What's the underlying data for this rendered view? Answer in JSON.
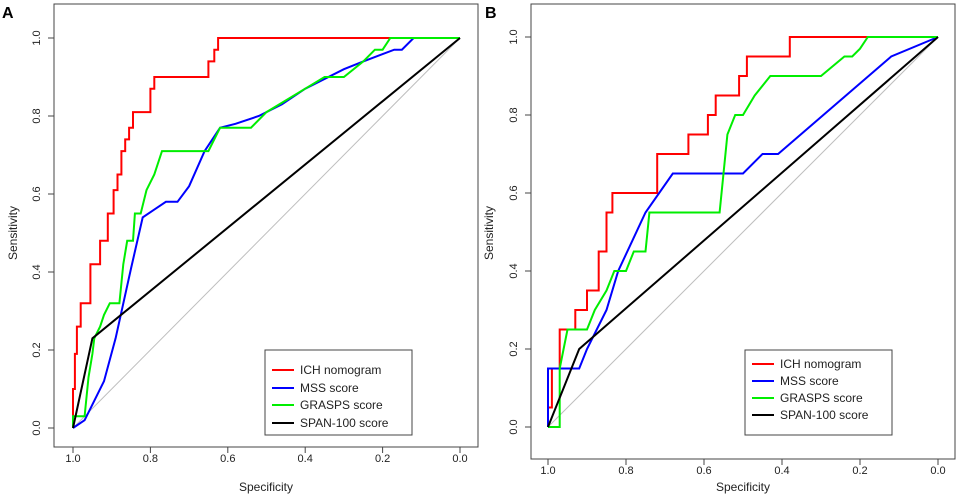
{
  "figure": {
    "series_colors": {
      "ICH nomogram": "#ff0000",
      "MSS score": "#0000ff",
      "GRASPS score": "#00ee00",
      "SPAN-100 score": "#000000"
    },
    "reference_line_color": "#bebebe"
  },
  "chart_data": [
    {
      "panel": "A",
      "type": "line",
      "xlabel": "Specificity",
      "ylabel": "Sensitivity",
      "xlim": [
        1.0,
        0.0
      ],
      "ylim": [
        0.0,
        1.0
      ],
      "xticks": [
        "1.0",
        "0.8",
        "0.6",
        "0.4",
        "0.2",
        "0.0"
      ],
      "yticks": [
        "0.0",
        "0.2",
        "0.4",
        "0.6",
        "0.8",
        "1.0"
      ],
      "legend": [
        "ICH nomogram",
        "MSS score",
        "GRASPS score",
        "SPAN-100 score"
      ],
      "legend_position": "bottom-right",
      "series": [
        {
          "name": "ICH nomogram",
          "x": [
            1.0,
            1.0,
            0.995,
            0.995,
            0.99,
            0.99,
            0.98,
            0.98,
            0.955,
            0.955,
            0.93,
            0.93,
            0.91,
            0.91,
            0.895,
            0.895,
            0.885,
            0.885,
            0.875,
            0.875,
            0.865,
            0.865,
            0.855,
            0.855,
            0.845,
            0.845,
            0.83,
            0.83,
            0.8,
            0.8,
            0.79,
            0.79,
            0.77,
            0.77,
            0.65,
            0.65,
            0.635,
            0.635,
            0.625,
            0.625,
            0.61,
            0.61,
            0.0
          ],
          "y": [
            0.0,
            0.1,
            0.1,
            0.19,
            0.19,
            0.26,
            0.26,
            0.32,
            0.32,
            0.42,
            0.42,
            0.48,
            0.48,
            0.55,
            0.55,
            0.61,
            0.61,
            0.65,
            0.65,
            0.71,
            0.71,
            0.74,
            0.74,
            0.77,
            0.77,
            0.81,
            0.81,
            0.81,
            0.81,
            0.87,
            0.87,
            0.9,
            0.9,
            0.9,
            0.9,
            0.94,
            0.94,
            0.97,
            0.97,
            1.0,
            1.0,
            1.0,
            1.0
          ]
        },
        {
          "name": "MSS score",
          "x": [
            1.0,
            0.97,
            0.95,
            0.92,
            0.89,
            0.85,
            0.82,
            0.79,
            0.76,
            0.73,
            0.7,
            0.66,
            0.62,
            0.58,
            0.52,
            0.46,
            0.4,
            0.3,
            0.25,
            0.17,
            0.15,
            0.12,
            0.0
          ],
          "y": [
            0.0,
            0.02,
            0.06,
            0.12,
            0.23,
            0.41,
            0.54,
            0.56,
            0.58,
            0.58,
            0.62,
            0.71,
            0.77,
            0.78,
            0.8,
            0.83,
            0.87,
            0.92,
            0.94,
            0.97,
            0.97,
            1.0,
            1.0
          ]
        },
        {
          "name": "GRASPS score",
          "x": [
            1.0,
            1.0,
            0.97,
            0.96,
            0.95,
            0.945,
            0.93,
            0.92,
            0.905,
            0.88,
            0.87,
            0.86,
            0.845,
            0.84,
            0.825,
            0.81,
            0.79,
            0.77,
            0.75,
            0.65,
            0.62,
            0.54,
            0.5,
            0.45,
            0.4,
            0.35,
            0.3,
            0.25,
            0.22,
            0.2,
            0.18,
            0.0
          ],
          "y": [
            0.0,
            0.03,
            0.03,
            0.13,
            0.19,
            0.23,
            0.26,
            0.29,
            0.32,
            0.32,
            0.42,
            0.48,
            0.48,
            0.55,
            0.55,
            0.61,
            0.65,
            0.71,
            0.71,
            0.71,
            0.77,
            0.77,
            0.81,
            0.84,
            0.87,
            0.9,
            0.9,
            0.94,
            0.97,
            0.97,
            1.0,
            1.0
          ]
        },
        {
          "name": "SPAN-100 score",
          "x": [
            1.0,
            0.95,
            0.0
          ],
          "y": [
            0.0,
            0.23,
            1.0
          ]
        }
      ]
    },
    {
      "panel": "B",
      "type": "line",
      "xlabel": "Specificity",
      "ylabel": "Sensitivity",
      "xlim": [
        1.0,
        0.0
      ],
      "ylim": [
        0.0,
        1.0
      ],
      "xticks": [
        "1.0",
        "0.8",
        "0.6",
        "0.4",
        "0.2",
        "0.0"
      ],
      "yticks": [
        "0.0",
        "0.2",
        "0.4",
        "0.6",
        "0.8",
        "1.0"
      ],
      "legend": [
        "ICH nomogram",
        "MSS score",
        "GRASPS score",
        "SPAN-100 score"
      ],
      "legend_position": "bottom-right",
      "series": [
        {
          "name": "ICH nomogram",
          "x": [
            1.0,
            1.0,
            0.99,
            0.99,
            0.97,
            0.97,
            0.93,
            0.93,
            0.9,
            0.9,
            0.87,
            0.87,
            0.85,
            0.85,
            0.835,
            0.835,
            0.82,
            0.82,
            0.72,
            0.72,
            0.64,
            0.64,
            0.59,
            0.59,
            0.57,
            0.57,
            0.55,
            0.55,
            0.51,
            0.51,
            0.49,
            0.49,
            0.47,
            0.47,
            0.38,
            0.38,
            0.36,
            0.36,
            0.0
          ],
          "y": [
            0.0,
            0.05,
            0.05,
            0.15,
            0.15,
            0.25,
            0.25,
            0.3,
            0.3,
            0.35,
            0.35,
            0.45,
            0.45,
            0.55,
            0.55,
            0.6,
            0.6,
            0.6,
            0.6,
            0.7,
            0.7,
            0.75,
            0.75,
            0.8,
            0.8,
            0.85,
            0.85,
            0.85,
            0.85,
            0.9,
            0.9,
            0.95,
            0.95,
            0.95,
            0.95,
            1.0,
            1.0,
            1.0,
            1.0
          ]
        },
        {
          "name": "MSS score",
          "x": [
            1.0,
            1.0,
            0.92,
            0.9,
            0.85,
            0.82,
            0.75,
            0.68,
            0.5,
            0.45,
            0.41,
            0.12,
            0.0
          ],
          "y": [
            0.0,
            0.15,
            0.15,
            0.2,
            0.3,
            0.4,
            0.55,
            0.65,
            0.65,
            0.7,
            0.7,
            0.95,
            1.0
          ]
        },
        {
          "name": "GRASPS score",
          "x": [
            1.0,
            0.97,
            0.97,
            0.96,
            0.95,
            0.93,
            0.9,
            0.88,
            0.85,
            0.83,
            0.8,
            0.78,
            0.75,
            0.74,
            0.74,
            0.56,
            0.55,
            0.54,
            0.52,
            0.5,
            0.47,
            0.43,
            0.38,
            0.3,
            0.24,
            0.22,
            0.2,
            0.18,
            0.16,
            0.0
          ],
          "y": [
            0.0,
            0.0,
            0.15,
            0.2,
            0.25,
            0.25,
            0.25,
            0.3,
            0.35,
            0.4,
            0.4,
            0.45,
            0.45,
            0.55,
            0.55,
            0.55,
            0.65,
            0.75,
            0.8,
            0.8,
            0.85,
            0.9,
            0.9,
            0.9,
            0.95,
            0.95,
            0.97,
            1.0,
            1.0,
            1.0
          ]
        },
        {
          "name": "SPAN-100 score",
          "x": [
            1.0,
            0.92,
            0.0
          ],
          "y": [
            0.0,
            0.2,
            1.0
          ]
        }
      ]
    }
  ]
}
